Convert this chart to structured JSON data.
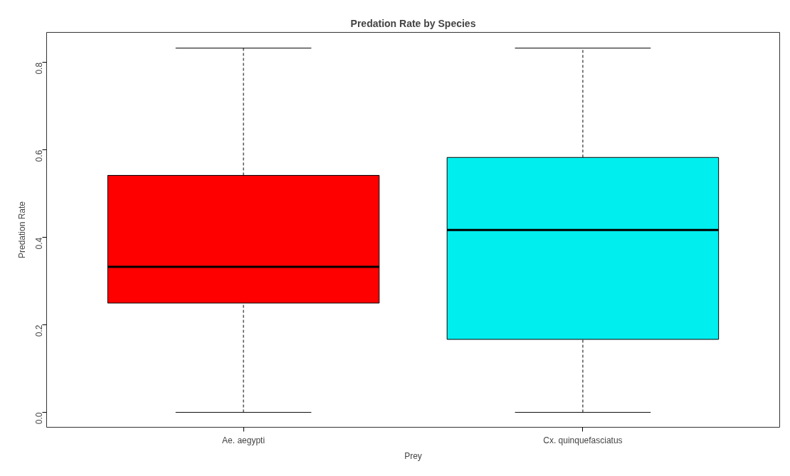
{
  "chart_data": {
    "type": "box",
    "title": "Predation Rate by Species",
    "xlabel": "Prey",
    "ylabel": "Predation Rate",
    "categories": [
      "Ae. aegypti",
      "Cx. quinquefasciatus"
    ],
    "colors": [
      "#ff0000",
      "#00eeee"
    ],
    "boxes": [
      {
        "low": 0,
        "q1": 0.25,
        "median": 0.333,
        "q3": 0.542,
        "high": 0.833
      },
      {
        "low": 0,
        "q1": 0.167,
        "median": 0.417,
        "q3": 0.583,
        "high": 0.833
      }
    ],
    "ylim": [
      -0.034,
      0.869
    ],
    "yticks": [
      {
        "value": 0,
        "label": "0.0"
      },
      {
        "value": 0.2,
        "label": "0.2"
      },
      {
        "value": 0.4,
        "label": "0.4"
      },
      {
        "value": 0.6,
        "label": "0.6"
      },
      {
        "value": 0.8,
        "label": "0.8"
      }
    ],
    "grid": false
  }
}
